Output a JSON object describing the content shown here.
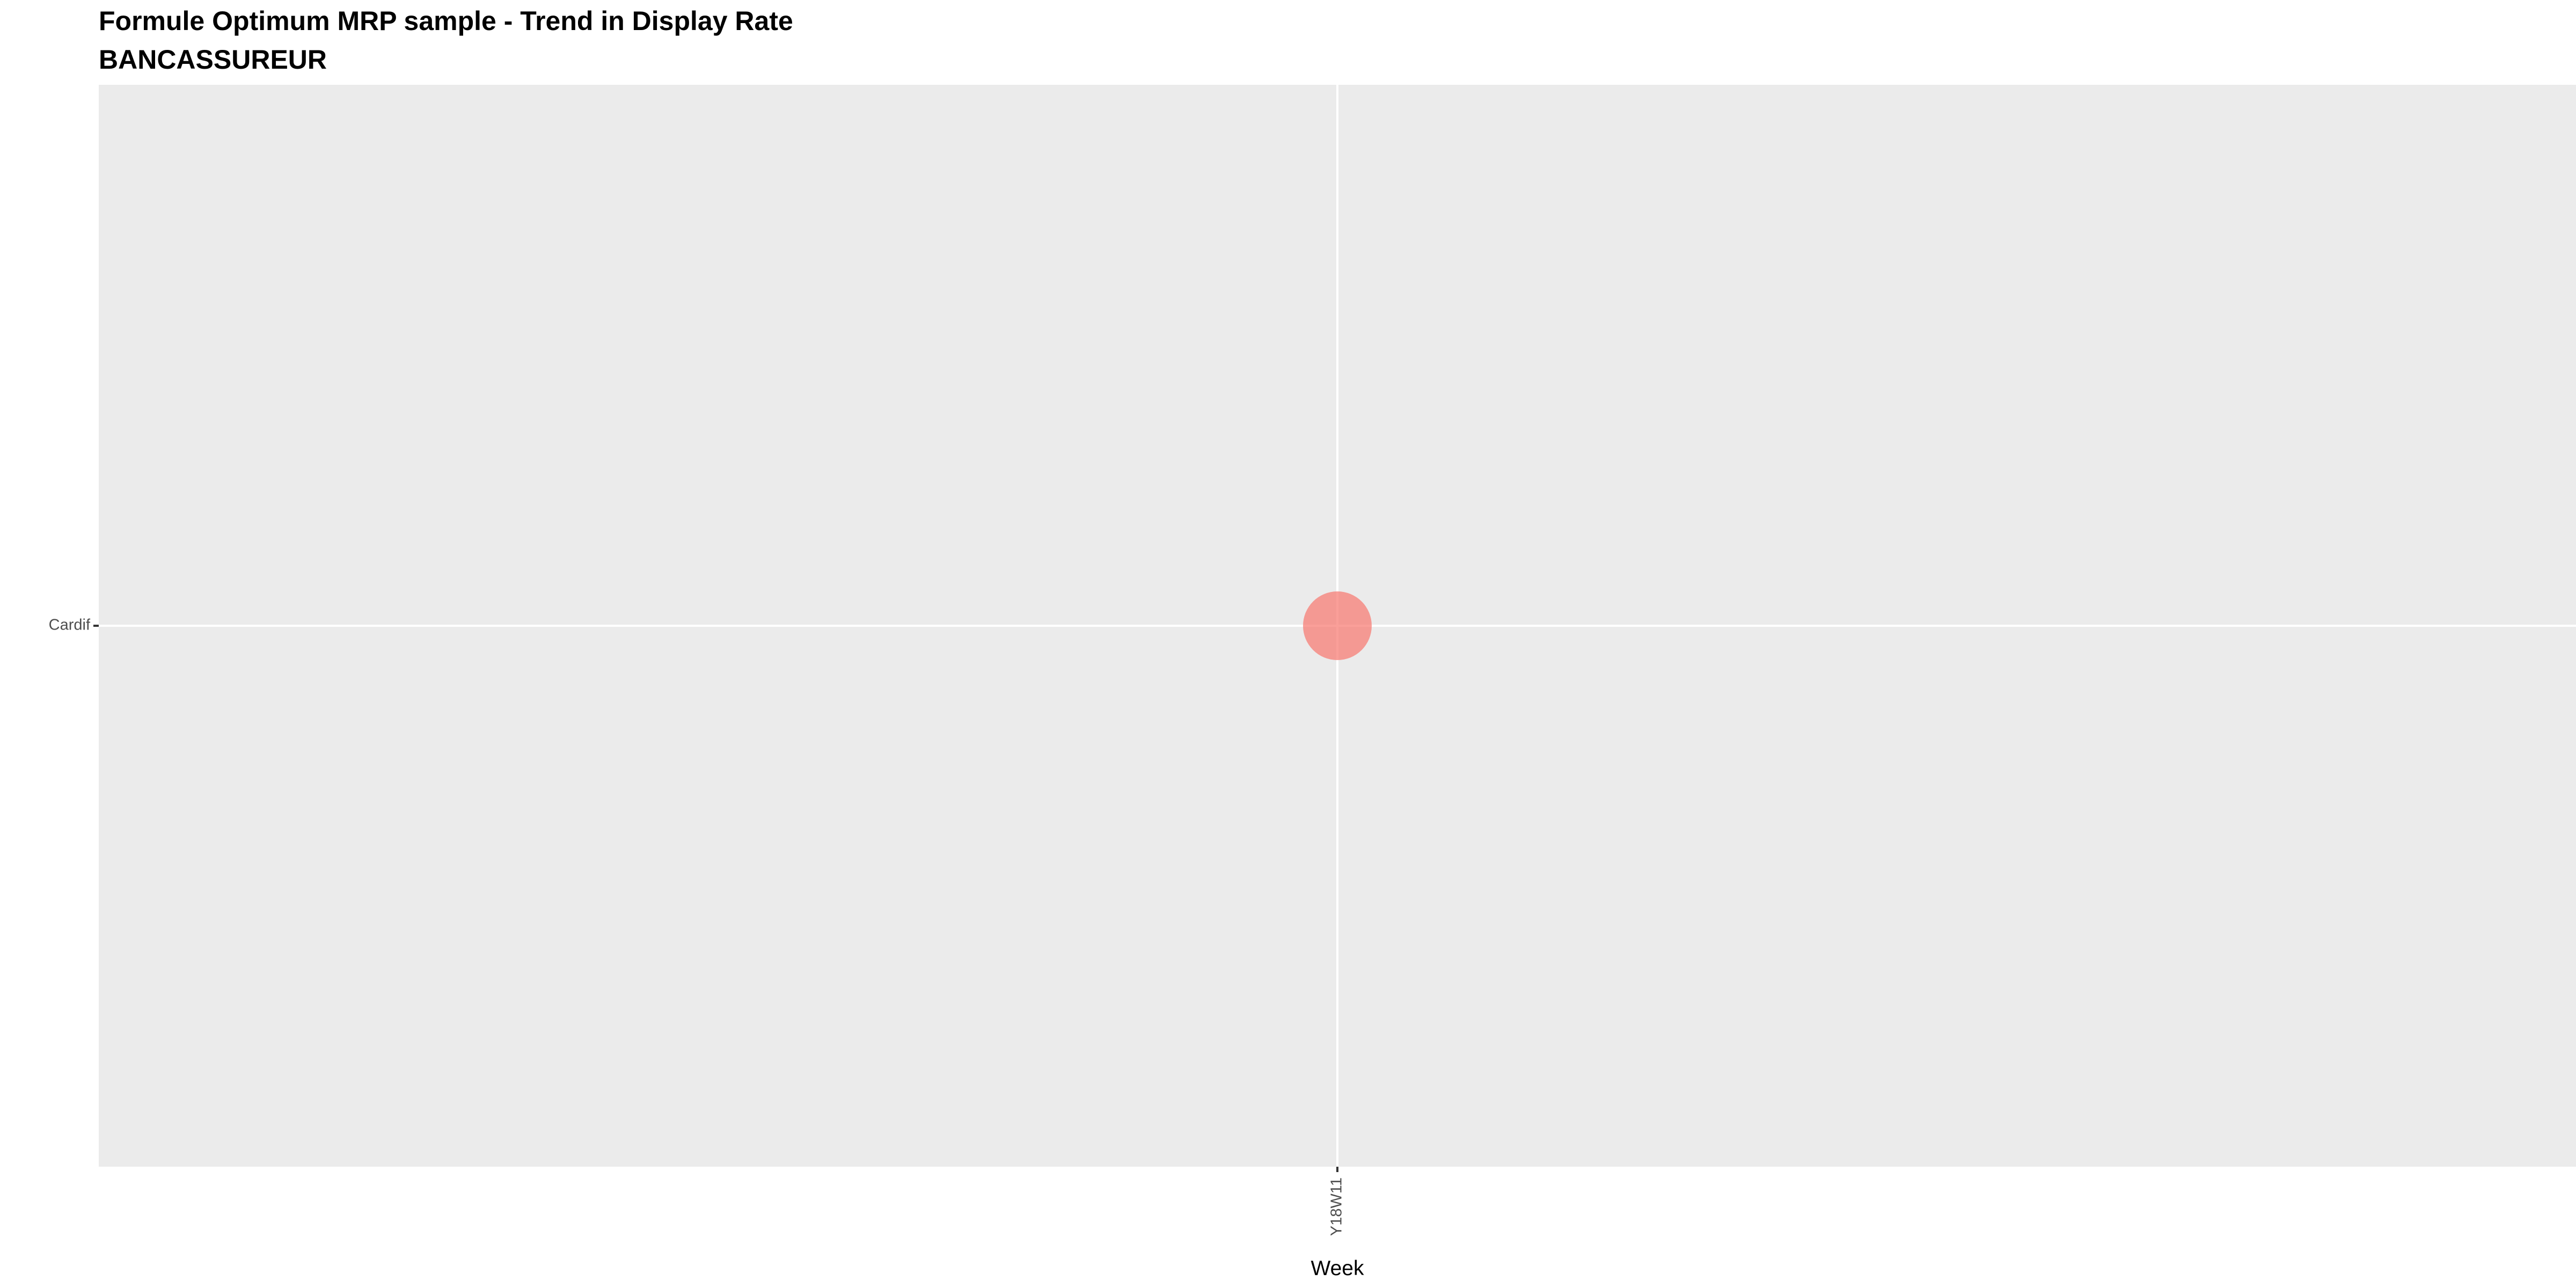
{
  "chart_data": {
    "type": "scatter",
    "title": "Formule Optimum MRP sample - Trend in Display Rate",
    "subtitle": "BANCASSUREUR",
    "xlabel": "Week",
    "ylabel": "",
    "x_categories": [
      "Y18W11"
    ],
    "y_categories": [
      "Cardif"
    ],
    "points": [
      {
        "x": "Y18W11",
        "y": "Cardif",
        "color": "#F8766D"
      }
    ],
    "grid": true,
    "legend": "none"
  },
  "colors": {
    "panel_background": "#EBEBEB",
    "grid_line": "#FFFFFF",
    "point": "#F8766D"
  }
}
